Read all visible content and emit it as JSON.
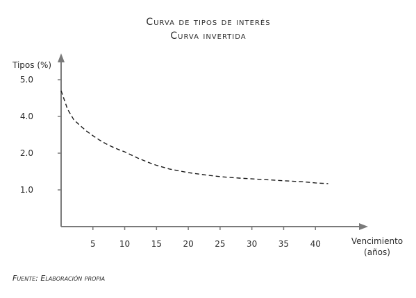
{
  "chart_data": {
    "type": "line",
    "title": "Curva de tipos de interés",
    "subtitle": "Curva invertida",
    "ylabel": "Tipos (%)",
    "xlabel": [
      "Vencimiento",
      "(años)"
    ],
    "x_ticks": [
      5,
      10,
      15,
      20,
      25,
      30,
      35,
      40
    ],
    "y_ticks": [
      {
        "value": 1.0,
        "label": "1.0"
      },
      {
        "value": 2.0,
        "label": "2.0"
      },
      {
        "value": 4.0,
        "label": "4.0"
      },
      {
        "value": 5.0,
        "label": "5.0"
      }
    ],
    "xlim": [
      0,
      45
    ],
    "y_scale": [
      {
        "value": 0.0,
        "pos": 0
      },
      {
        "value": 1.0,
        "pos": 1
      },
      {
        "value": 2.0,
        "pos": 2
      },
      {
        "value": 4.0,
        "pos": 3
      },
      {
        "value": 5.0,
        "pos": 4
      }
    ],
    "y_axis_pos_max": 5.0,
    "grid": false,
    "series": [
      {
        "line_style": "dashed",
        "color": "#1a1a1a",
        "points": [
          [
            0.0,
            4.7
          ],
          [
            0.5,
            4.45
          ],
          [
            1.0,
            4.2
          ],
          [
            2.0,
            3.82
          ],
          [
            3.0,
            3.5
          ],
          [
            4.0,
            3.2
          ],
          [
            5.0,
            2.95
          ],
          [
            6.0,
            2.72
          ],
          [
            7.0,
            2.52
          ],
          [
            8.0,
            2.35
          ],
          [
            9.0,
            2.2
          ],
          [
            10.0,
            2.07
          ],
          [
            12.0,
            1.87
          ],
          [
            14.0,
            1.73
          ],
          [
            15.0,
            1.67
          ],
          [
            17.0,
            1.57
          ],
          [
            20.0,
            1.47
          ],
          [
            23.0,
            1.4
          ],
          [
            25.0,
            1.36
          ],
          [
            28.0,
            1.32
          ],
          [
            30.0,
            1.3
          ],
          [
            33.0,
            1.27
          ],
          [
            35.0,
            1.25
          ],
          [
            38.0,
            1.22
          ],
          [
            40.0,
            1.19
          ],
          [
            42.0,
            1.17
          ]
        ]
      }
    ]
  },
  "source": "Fuente: Elaboración propia",
  "colors": {
    "axis": "#7a7a7a",
    "text": "#2b2b2b",
    "line": "#1a1a1a"
  }
}
